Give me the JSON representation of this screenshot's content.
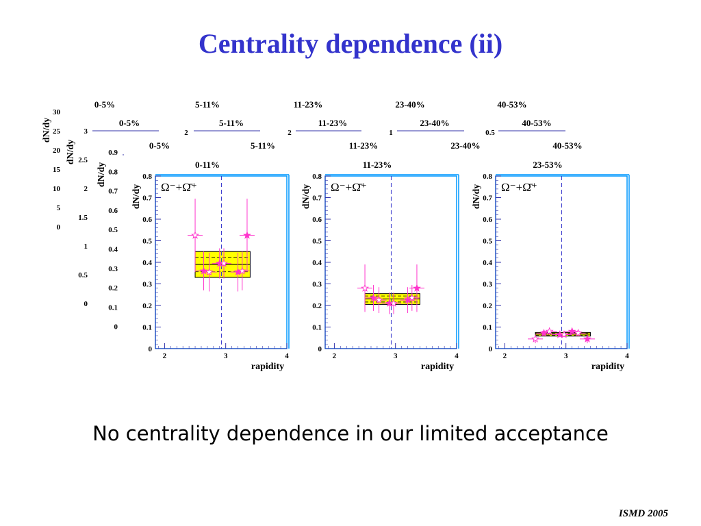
{
  "slide": {
    "title": "Centrality dependence (ii)",
    "caption": "No centrality dependence in our limited acceptance",
    "footer": "ISMD 2005"
  },
  "colors": {
    "title": "#3333cc",
    "frame": "#0099ff",
    "axis": "#3333aa",
    "points": "#ff33cc",
    "sys_box": "#ffff00",
    "midline": "#3333cc"
  },
  "background_layers": [
    {
      "labels": [
        "0-5%",
        "5-11%",
        "11-23%",
        "23-40%",
        "40-53%"
      ],
      "ylabel": "dN/dy",
      "ticks": [
        "30",
        "25",
        "20",
        "15",
        "10",
        "5",
        "0"
      ]
    },
    {
      "labels": [
        "0-5%",
        "5-11%",
        "11-23%",
        "23-40%",
        "40-53%"
      ],
      "ylabel": "dN/dy",
      "ticks": [
        "3",
        "2.5",
        "2",
        "1.5",
        "1",
        "0.5",
        "0"
      ],
      "edge_ticks": [
        "2",
        "2",
        "1",
        "0.5"
      ]
    },
    {
      "labels": [
        "0-5%",
        "5-11%",
        "11-23%",
        "23-40%",
        "40-53%"
      ],
      "ylabel": "dN/dy",
      "ticks": [
        "0.9",
        "0.8",
        "0.7",
        "0.6",
        "0.5",
        "0.4",
        "0.3",
        "0.2",
        "0.1",
        "0"
      ]
    }
  ],
  "chart_data": [
    {
      "type": "scatter",
      "title": "0-11%",
      "legend": "Ω⁻+Ω̄⁺",
      "xlabel": "rapidity",
      "ylabel": "dN/dy",
      "xlim": [
        1.85,
        4.0
      ],
      "ylim": [
        0,
        0.8
      ],
      "xticks": [
        "2",
        "3",
        "4"
      ],
      "yticks": [
        "0",
        "0.1",
        "0.2",
        "0.3",
        "0.4",
        "0.5",
        "0.6",
        "0.7",
        "0.8"
      ],
      "midrapidity": 2.93,
      "sys_box": {
        "x": [
          2.5,
          3.4
        ],
        "y": [
          0.33,
          0.45
        ],
        "central": 0.39
      },
      "series": [
        {
          "marker": "filled-star",
          "points": [
            {
              "x": 2.64,
              "y": 0.36,
              "yerr": 0.09
            },
            {
              "x": 2.9,
              "y": 0.395,
              "yerr": 0.07
            },
            {
              "x": 3.2,
              "y": 0.355,
              "yerr": 0.09
            },
            {
              "x": 3.35,
              "y": 0.525,
              "yerr": 0.17
            }
          ]
        },
        {
          "marker": "open-star",
          "points": [
            {
              "x": 2.5,
              "y": 0.525,
              "yerr": 0.17
            },
            {
              "x": 2.73,
              "y": 0.355,
              "yerr": 0.09
            },
            {
              "x": 2.97,
              "y": 0.395,
              "yerr": 0.07
            },
            {
              "x": 3.27,
              "y": 0.36,
              "yerr": 0.09
            }
          ]
        }
      ]
    },
    {
      "type": "scatter",
      "title": "11-23%",
      "legend": "Ω⁻+Ω̄⁺",
      "xlabel": "rapidity",
      "ylabel": "dN/dy",
      "xlim": [
        1.85,
        4.0
      ],
      "ylim": [
        0,
        0.8
      ],
      "xticks": [
        "2",
        "3",
        "4"
      ],
      "yticks": [
        "0",
        "0.1",
        "0.2",
        "0.3",
        "0.4",
        "0.5",
        "0.6",
        "0.7",
        "0.8"
      ],
      "midrapidity": 2.93,
      "sys_box": {
        "x": [
          2.5,
          3.4
        ],
        "y": [
          0.205,
          0.255
        ],
        "central": 0.23
      },
      "series": [
        {
          "marker": "filled-star",
          "points": [
            {
              "x": 2.64,
              "y": 0.235,
              "yerr": 0.06
            },
            {
              "x": 2.9,
              "y": 0.21,
              "yerr": 0.05
            },
            {
              "x": 3.2,
              "y": 0.225,
              "yerr": 0.06
            },
            {
              "x": 3.35,
              "y": 0.28,
              "yerr": 0.11
            }
          ]
        },
        {
          "marker": "open-star",
          "points": [
            {
              "x": 2.5,
              "y": 0.28,
              "yerr": 0.11
            },
            {
              "x": 2.73,
              "y": 0.225,
              "yerr": 0.06
            },
            {
              "x": 2.97,
              "y": 0.21,
              "yerr": 0.05
            },
            {
              "x": 3.27,
              "y": 0.235,
              "yerr": 0.06
            }
          ]
        }
      ]
    },
    {
      "type": "scatter",
      "title": "23-53%",
      "legend": "Ω⁻+Ω̄⁺",
      "xlabel": "rapidity",
      "ylabel": "dN/dy",
      "xlim": [
        1.85,
        4.0
      ],
      "ylim": [
        0,
        0.8
      ],
      "xticks": [
        "2",
        "3",
        "4"
      ],
      "yticks": [
        "0",
        "0.1",
        "0.2",
        "0.3",
        "0.4",
        "0.5",
        "0.6",
        "0.7",
        "0.8"
      ],
      "midrapidity": 2.93,
      "sys_box": {
        "x": [
          2.5,
          3.4
        ],
        "y": [
          0.058,
          0.075
        ],
        "central": 0.067
      },
      "series": [
        {
          "marker": "filled-star",
          "points": [
            {
              "x": 2.64,
              "y": 0.072,
              "yerr": 0.015
            },
            {
              "x": 2.9,
              "y": 0.065,
              "yerr": 0.012
            },
            {
              "x": 3.1,
              "y": 0.08,
              "yerr": 0.015
            },
            {
              "x": 3.35,
              "y": 0.045,
              "yerr": 0.02
            }
          ]
        },
        {
          "marker": "open-star",
          "points": [
            {
              "x": 2.5,
              "y": 0.045,
              "yerr": 0.02
            },
            {
              "x": 2.73,
              "y": 0.08,
              "yerr": 0.015
            },
            {
              "x": 2.97,
              "y": 0.065,
              "yerr": 0.012
            },
            {
              "x": 3.2,
              "y": 0.072,
              "yerr": 0.015
            }
          ]
        }
      ]
    }
  ]
}
